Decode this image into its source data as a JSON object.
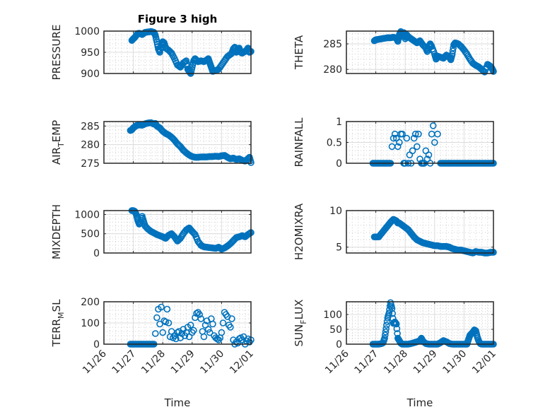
{
  "figure_title": "Figure 3 high",
  "chart_data": [
    {
      "type": "scatter",
      "ylabel": "PRESSURE",
      "title": "Figure 3 high",
      "ylim": [
        900,
        1000
      ],
      "yticks": [
        900,
        950,
        1000
      ],
      "xlim": [
        0,
        5
      ],
      "xticks": [
        "11/26",
        "11/27",
        "11/28",
        "11/29",
        "11/30",
        "12/01"
      ],
      "xlabel": "",
      "x": [
        0.95,
        1.0,
        1.05,
        1.1,
        1.15,
        1.2,
        1.3,
        1.4,
        1.5,
        1.6,
        1.65,
        1.7,
        1.75,
        1.8,
        1.85,
        1.9,
        1.95,
        2.0,
        2.05,
        2.1,
        2.2,
        2.3,
        2.4,
        2.5,
        2.6,
        2.7,
        2.8,
        2.85,
        2.9,
        2.95,
        3.0,
        3.05,
        3.1,
        3.2,
        3.3,
        3.4,
        3.5,
        3.55,
        3.6,
        3.65,
        3.7,
        3.8,
        3.9,
        4.0,
        4.1,
        4.2,
        4.3,
        4.35,
        4.4,
        4.45,
        4.5,
        4.55,
        4.6,
        4.65,
        4.7,
        4.8,
        4.85,
        4.9,
        4.95,
        5.0
      ],
      "values": [
        978,
        982,
        985,
        990,
        994,
        995,
        992,
        997,
        998,
        999,
        998,
        997,
        990,
        975,
        958,
        950,
        968,
        975,
        972,
        960,
        955,
        948,
        935,
        920,
        915,
        925,
        930,
        910,
        905,
        900,
        915,
        930,
        935,
        928,
        930,
        928,
        932,
        935,
        925,
        915,
        905,
        907,
        910,
        920,
        930,
        940,
        945,
        948,
        958,
        962,
        950,
        955,
        960,
        950,
        948,
        952,
        955,
        960,
        950,
        952
      ]
    },
    {
      "type": "scatter",
      "ylabel": "THETA",
      "ylim": [
        279.2,
        287.5
      ],
      "yticks": [
        280,
        285
      ],
      "xlim": [
        0,
        5
      ],
      "xticks": [
        "11/26",
        "11/27",
        "11/28",
        "11/29",
        "11/30",
        "12/01"
      ],
      "xlabel": "",
      "x": [
        0.95,
        1.0,
        1.1,
        1.2,
        1.3,
        1.4,
        1.5,
        1.6,
        1.7,
        1.75,
        1.8,
        1.85,
        1.9,
        1.95,
        2.0,
        2.05,
        2.1,
        2.2,
        2.3,
        2.4,
        2.5,
        2.6,
        2.7,
        2.75,
        2.8,
        2.85,
        2.9,
        3.0,
        3.05,
        3.1,
        3.2,
        3.3,
        3.4,
        3.5,
        3.55,
        3.6,
        3.65,
        3.7,
        3.8,
        3.9,
        4.0,
        4.1,
        4.2,
        4.3,
        4.4,
        4.5,
        4.6,
        4.7,
        4.8,
        4.9,
        4.95,
        5.0
      ],
      "values": [
        285.6,
        285.8,
        285.9,
        286.0,
        286.1,
        286.2,
        286.2,
        286.3,
        286.1,
        285.5,
        286.8,
        287.4,
        286.5,
        287.2,
        286.0,
        286.8,
        286.4,
        286.0,
        285.6,
        285.2,
        285.6,
        284.8,
        284.2,
        283.5,
        284.5,
        285.0,
        284.5,
        283.0,
        282.0,
        282.6,
        282.4,
        282.2,
        282.8,
        282.4,
        281.9,
        283.0,
        284.8,
        285.2,
        285.0,
        284.5,
        283.8,
        283.0,
        282.0,
        281.2,
        280.8,
        280.5,
        280.0,
        279.5,
        281.0,
        280.6,
        280.2,
        279.6
      ]
    },
    {
      "type": "scatter",
      "ylabel": "AIR_TEMP",
      "ylim": [
        275,
        286.2
      ],
      "yticks": [
        275,
        280,
        285
      ],
      "xlim": [
        0,
        5
      ],
      "xticks": [
        "11/26",
        "11/27",
        "11/28",
        "11/29",
        "11/30",
        "12/01"
      ],
      "xlabel": "",
      "x": [
        0.9,
        0.95,
        1.0,
        1.05,
        1.1,
        1.2,
        1.3,
        1.4,
        1.5,
        1.6,
        1.7,
        1.75,
        1.8,
        1.9,
        2.0,
        2.1,
        2.2,
        2.3,
        2.4,
        2.5,
        2.6,
        2.7,
        2.8,
        2.9,
        3.0,
        3.1,
        3.2,
        3.3,
        3.4,
        3.5,
        3.6,
        3.7,
        3.8,
        3.9,
        4.0,
        4.1,
        4.2,
        4.3,
        4.4,
        4.5,
        4.6,
        4.7,
        4.8,
        4.9,
        4.95,
        5.0
      ],
      "values": [
        283.8,
        284.0,
        284.5,
        284.8,
        285.1,
        285.3,
        285.2,
        285.6,
        285.8,
        285.9,
        285.5,
        285.7,
        285.0,
        284.5,
        283.6,
        283.0,
        282.6,
        282.0,
        281.2,
        280.2,
        279.5,
        278.5,
        277.8,
        277.2,
        276.8,
        276.6,
        276.6,
        276.7,
        276.7,
        276.7,
        276.8,
        276.8,
        276.9,
        276.8,
        277.0,
        277.1,
        276.6,
        276.2,
        276.4,
        276.0,
        276.2,
        275.8,
        275.6,
        276.2,
        276.6,
        275.2
      ]
    },
    {
      "type": "scatter",
      "ylabel": "RAINFALL",
      "ylim": [
        0,
        1
      ],
      "yticks": [
        0,
        0.5,
        1
      ],
      "xlim": [
        0,
        5
      ],
      "xticks": [
        "11/26",
        "11/27",
        "11/28",
        "11/29",
        "11/30",
        "12/01"
      ],
      "xlabel": "",
      "x": [
        0.9,
        1.0,
        1.1,
        1.2,
        1.3,
        1.4,
        1.5,
        1.55,
        1.6,
        1.65,
        1.7,
        1.75,
        1.8,
        1.85,
        1.9,
        1.95,
        2.0,
        2.05,
        2.1,
        2.15,
        2.2,
        2.25,
        2.3,
        2.35,
        2.4,
        2.45,
        2.5,
        2.55,
        2.6,
        2.65,
        2.7,
        2.75,
        2.8,
        2.85,
        2.9,
        2.95,
        3.0,
        3.1,
        3.2,
        3.3,
        3.4,
        3.5,
        3.6,
        3.7,
        3.8,
        3.9,
        4.0,
        4.1,
        4.2,
        4.3,
        4.4,
        4.5,
        4.6,
        4.7,
        4.8,
        4.9,
        5.0
      ],
      "values": [
        0,
        0,
        0,
        0,
        0,
        0,
        0,
        0.4,
        0.6,
        0.7,
        0.6,
        0.4,
        0.5,
        0.7,
        0.7,
        0,
        0,
        0.6,
        0,
        0.2,
        0,
        0.3,
        0.6,
        0.7,
        0.4,
        0.7,
        0.1,
        0,
        0,
        0,
        0.3,
        0.1,
        0.2,
        0,
        0.7,
        0.9,
        0.5,
        0.7,
        0,
        0,
        0,
        0,
        0,
        0,
        0,
        0,
        0,
        0,
        0,
        0,
        0,
        0,
        0,
        0,
        0,
        0,
        0
      ]
    },
    {
      "type": "scatter",
      "ylabel": "MIXDEPTH",
      "ylim": [
        0,
        1100
      ],
      "yticks": [
        0,
        500,
        1000
      ],
      "xlim": [
        0,
        5
      ],
      "xticks": [
        "11/26",
        "11/27",
        "11/28",
        "11/29",
        "11/30",
        "12/01"
      ],
      "xlabel": "",
      "x": [
        0.95,
        1.0,
        1.05,
        1.1,
        1.15,
        1.2,
        1.25,
        1.3,
        1.35,
        1.4,
        1.5,
        1.6,
        1.7,
        1.8,
        1.9,
        2.0,
        2.1,
        2.2,
        2.3,
        2.4,
        2.5,
        2.6,
        2.7,
        2.8,
        2.9,
        3.0,
        3.1,
        3.2,
        3.3,
        3.4,
        3.5,
        3.6,
        3.7,
        3.8,
        3.9,
        4.0,
        4.1,
        4.2,
        4.3,
        4.4,
        4.5,
        4.6,
        4.7,
        4.8,
        4.9,
        5.0
      ],
      "values": [
        1100,
        1100,
        1080,
        1000,
        850,
        750,
        800,
        950,
        820,
        700,
        620,
        560,
        520,
        480,
        450,
        420,
        380,
        460,
        500,
        420,
        310,
        380,
        500,
        600,
        650,
        560,
        480,
        300,
        200,
        160,
        150,
        140,
        130,
        120,
        150,
        100,
        130,
        180,
        240,
        320,
        400,
        420,
        450,
        420,
        480,
        530
      ]
    },
    {
      "type": "scatter",
      "ylabel": "H2OMIXRA",
      "ylim": [
        4.2,
        10
      ],
      "yticks": [
        5,
        10
      ],
      "xlim": [
        0,
        5
      ],
      "xticks": [
        "11/26",
        "11/27",
        "11/28",
        "11/29",
        "11/30",
        "12/01"
      ],
      "xlabel": "",
      "x": [
        0.95,
        1.0,
        1.1,
        1.2,
        1.3,
        1.4,
        1.5,
        1.6,
        1.7,
        1.75,
        1.8,
        1.9,
        2.0,
        2.1,
        2.2,
        2.3,
        2.4,
        2.5,
        2.6,
        2.7,
        2.8,
        2.9,
        3.0,
        3.1,
        3.2,
        3.3,
        3.4,
        3.5,
        3.6,
        3.7,
        3.8,
        3.9,
        4.0,
        4.1,
        4.2,
        4.3,
        4.4,
        4.5,
        4.6,
        4.7,
        4.8,
        4.9,
        5.0
      ],
      "values": [
        6.4,
        6.4,
        6.4,
        6.9,
        7.4,
        7.9,
        8.4,
        8.8,
        8.6,
        8.3,
        8.3,
        8.0,
        7.7,
        7.4,
        6.9,
        6.4,
        6.0,
        5.8,
        5.6,
        5.5,
        5.4,
        5.3,
        5.2,
        5.2,
        5.1,
        5.1,
        5.1,
        5.0,
        4.8,
        4.7,
        4.6,
        4.6,
        4.5,
        4.4,
        4.3,
        4.2,
        4.4,
        4.3,
        4.3,
        4.2,
        4.2,
        4.3,
        4.3
      ]
    },
    {
      "type": "scatter",
      "ylabel": "TERR_MSL",
      "ylim": [
        0,
        200
      ],
      "yticks": [
        0,
        100,
        200
      ],
      "xlim": [
        0,
        5
      ],
      "xticks": [
        "11/26",
        "11/27",
        "11/28",
        "11/29",
        "11/30",
        "12/01"
      ],
      "xlabel": "Time",
      "x": [
        0.9,
        1.0,
        1.1,
        1.2,
        1.3,
        1.4,
        1.5,
        1.6,
        1.7,
        1.75,
        1.8,
        1.85,
        1.9,
        1.95,
        2.0,
        2.05,
        2.1,
        2.15,
        2.2,
        2.25,
        2.3,
        2.35,
        2.4,
        2.45,
        2.5,
        2.55,
        2.6,
        2.65,
        2.7,
        2.75,
        2.8,
        2.85,
        2.9,
        2.95,
        3.0,
        3.05,
        3.1,
        3.15,
        3.2,
        3.25,
        3.3,
        3.35,
        3.4,
        3.45,
        3.5,
        3.55,
        3.6,
        3.65,
        3.7,
        3.75,
        3.8,
        3.85,
        3.9,
        3.95,
        4.0,
        4.05,
        4.1,
        4.15,
        4.2,
        4.25,
        4.3,
        4.35,
        4.4,
        4.45,
        4.5,
        4.55,
        4.6,
        4.65,
        4.7,
        4.75,
        4.8,
        4.85,
        4.9,
        4.95,
        5.0
      ],
      "values": [
        0,
        0,
        0,
        0,
        0,
        0,
        0,
        0,
        0,
        50,
        125,
        165,
        95,
        175,
        55,
        110,
        105,
        165,
        100,
        35,
        60,
        30,
        40,
        25,
        55,
        60,
        30,
        50,
        70,
        40,
        55,
        80,
        35,
        90,
        55,
        65,
        125,
        145,
        150,
        140,
        120,
        60,
        35,
        90,
        110,
        70,
        55,
        120,
        95,
        40,
        30,
        25,
        20,
        30,
        55,
        100,
        150,
        140,
        130,
        90,
        80,
        120,
        20,
        0,
        10,
        5,
        25,
        30,
        20,
        35,
        0,
        15,
        25,
        10,
        20
      ]
    },
    {
      "type": "scatter",
      "ylabel": "SUN_FLUX",
      "ylim": [
        0,
        143
      ],
      "yticks": [
        0,
        50,
        100
      ],
      "xlim": [
        0,
        5
      ],
      "xticks": [
        "11/26",
        "11/27",
        "11/28",
        "11/29",
        "11/30",
        "12/01"
      ],
      "xlabel": "Time",
      "x": [
        0.9,
        1.0,
        1.1,
        1.2,
        1.25,
        1.3,
        1.35,
        1.4,
        1.45,
        1.5,
        1.55,
        1.6,
        1.65,
        1.7,
        1.75,
        1.8,
        1.85,
        1.9,
        2.0,
        2.1,
        2.2,
        2.3,
        2.4,
        2.5,
        2.55,
        2.6,
        2.7,
        2.8,
        2.9,
        3.0,
        3.1,
        3.2,
        3.3,
        3.4,
        3.5,
        3.6,
        3.7,
        3.8,
        3.9,
        4.0,
        4.1,
        4.15,
        4.2,
        4.25,
        4.3,
        4.35,
        4.4,
        4.45,
        4.5,
        4.55,
        4.6,
        4.7,
        4.8,
        4.9,
        5.0
      ],
      "values": [
        0,
        0,
        0,
        2,
        5,
        20,
        52,
        88,
        105,
        140,
        120,
        70,
        75,
        68,
        20,
        12,
        3,
        0,
        0,
        0,
        2,
        5,
        8,
        12,
        20,
        10,
        2,
        0,
        0,
        0,
        0,
        5,
        12,
        8,
        2,
        0,
        0,
        0,
        0,
        0,
        0,
        15,
        30,
        35,
        40,
        48,
        45,
        25,
        10,
        2,
        0,
        0,
        0,
        0,
        0
      ]
    }
  ]
}
